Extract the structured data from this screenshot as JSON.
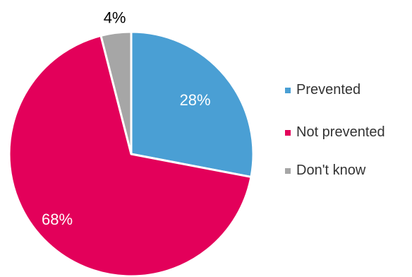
{
  "chart_data": {
    "type": "pie",
    "slices": [
      {
        "name": "Prevented",
        "value": 28,
        "label": "28%",
        "color": "#4a9fd4"
      },
      {
        "name": "Not prevented",
        "value": 68,
        "label": "68%",
        "color": "#e3005a"
      },
      {
        "name": "Don't know",
        "value": 4,
        "label": "4%",
        "color": "#a6a6a6"
      }
    ],
    "legend": "right",
    "start": "top",
    "direction": "clockwise"
  }
}
